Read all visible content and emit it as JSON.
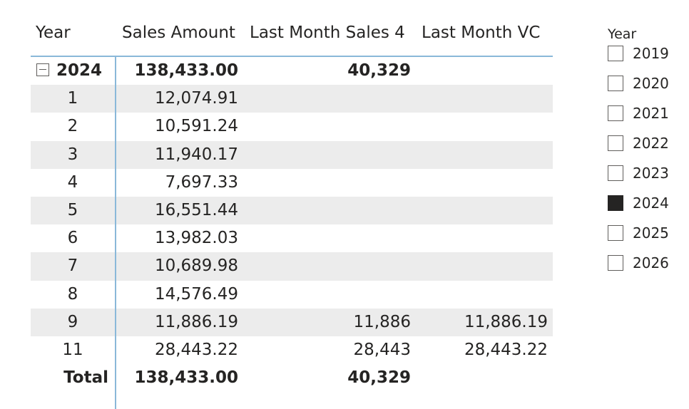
{
  "matrix": {
    "headers": {
      "year": "Year",
      "sales_amount": "Sales Amount",
      "last_month_sales_4": "Last Month Sales 4",
      "last_month_vc": "Last Month VC"
    },
    "group": {
      "label": "2024",
      "sales_amount": "138,433.00",
      "last_month_sales_4": "40,329",
      "last_month_vc": ""
    },
    "rows": [
      {
        "month": "1",
        "sales_amount": "12,074.91",
        "last_month_sales_4": "",
        "last_month_vc": ""
      },
      {
        "month": "2",
        "sales_amount": "10,591.24",
        "last_month_sales_4": "",
        "last_month_vc": ""
      },
      {
        "month": "3",
        "sales_amount": "11,940.17",
        "last_month_sales_4": "",
        "last_month_vc": ""
      },
      {
        "month": "4",
        "sales_amount": "7,697.33",
        "last_month_sales_4": "",
        "last_month_vc": ""
      },
      {
        "month": "5",
        "sales_amount": "16,551.44",
        "last_month_sales_4": "",
        "last_month_vc": ""
      },
      {
        "month": "6",
        "sales_amount": "13,982.03",
        "last_month_sales_4": "",
        "last_month_vc": ""
      },
      {
        "month": "7",
        "sales_amount": "10,689.98",
        "last_month_sales_4": "",
        "last_month_vc": ""
      },
      {
        "month": "8",
        "sales_amount": "14,576.49",
        "last_month_sales_4": "",
        "last_month_vc": ""
      },
      {
        "month": "9",
        "sales_amount": "11,886.19",
        "last_month_sales_4": "11,886",
        "last_month_vc": "11,886.19"
      },
      {
        "month": "11",
        "sales_amount": "28,443.22",
        "last_month_sales_4": "28,443",
        "last_month_vc": "28,443.22"
      }
    ],
    "total": {
      "label": "Total",
      "sales_amount": "138,433.00",
      "last_month_sales_4": "40,329",
      "last_month_vc": ""
    }
  },
  "slicer": {
    "title": "Year",
    "items": [
      {
        "label": "2019",
        "checked": false
      },
      {
        "label": "2020",
        "checked": false
      },
      {
        "label": "2021",
        "checked": false
      },
      {
        "label": "2022",
        "checked": false
      },
      {
        "label": "2023",
        "checked": false
      },
      {
        "label": "2024",
        "checked": true
      },
      {
        "label": "2025",
        "checked": false
      },
      {
        "label": "2026",
        "checked": false
      }
    ]
  },
  "colors": {
    "band": "#ececec",
    "divider": "#8ab8d9",
    "text": "#252423",
    "checkbox_checked": "#252423"
  }
}
